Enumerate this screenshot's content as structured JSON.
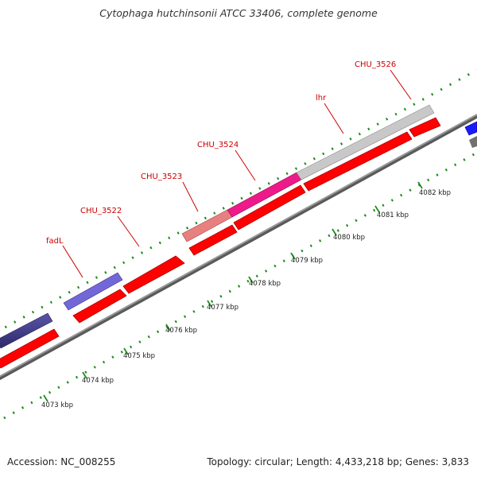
{
  "title": "Cytophaga hutchinsonii ATCC 33406, complete genome",
  "footer": {
    "accession": "Accession: NC_008255",
    "summary": "Topology: circular; Length: 4,433,218 bp; Genes: 3,833"
  },
  "tick_labels": [
    "4073 kbp",
    "4074 kbp",
    "4075 kbp",
    "4076 kbp",
    "4077 kbp",
    "4078 kbp",
    "4079 kbp",
    "4080 kbp",
    "4081 kbp",
    "4082 kbp"
  ],
  "gene_labels": [
    "fadL",
    "CHU_3522",
    "CHU_3523",
    "CHU_3524",
    "lhr",
    "CHU_3526"
  ],
  "colors": {
    "cds_red": "#ff0000",
    "backbone": "#888888",
    "tick_green": "#228b22",
    "label_red": "#cc0000",
    "gene_dark_navy": "#3f3a8a",
    "gene_fadL": "#7367d8",
    "gene_CHU_3523": "#e88080",
    "gene_CHU_3524": "#ee1a8a",
    "gene_lhr": "#c8c8c8",
    "gene_edge_blue": "#1a1aff"
  }
}
